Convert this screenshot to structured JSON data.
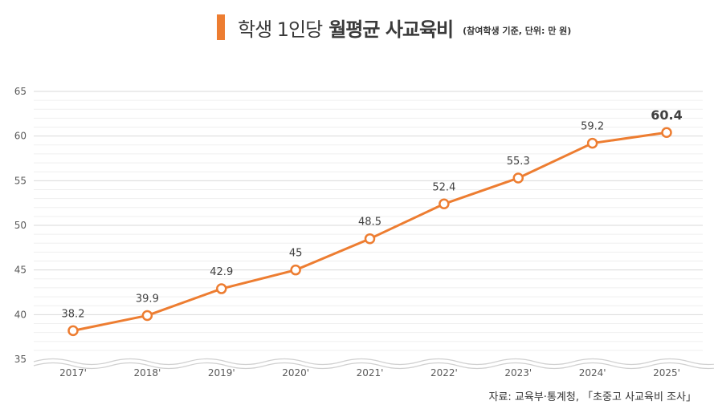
{
  "header": {
    "title_prefix": "학생 1인당",
    "title_bold": "월평균 사교육비",
    "note": "(참여학생 기준, 단위: 만 원)"
  },
  "source": "자료: 교육부·통계청, 「초중고 사교육비 조사」",
  "colors": {
    "accent": "#ed7d31",
    "grid": "#d9d9d9",
    "axis_text": "#595959"
  },
  "chart_data": {
    "type": "line",
    "title": "학생 1인당 월평균 사교육비",
    "subtitle": "(참여학생 기준, 단위: 만 원)",
    "categories": [
      "2017'",
      "2018'",
      "2019'",
      "2020'",
      "2021'",
      "2022'",
      "2023'",
      "2024'",
      "2025'"
    ],
    "series": [
      {
        "values": [
          38.2,
          39.9,
          42.9,
          45,
          48.5,
          52.4,
          55.3,
          59.2,
          60.4
        ]
      }
    ],
    "data_labels": [
      "38.2",
      "39.9",
      "42.9",
      "45",
      "48.5",
      "52.4",
      "55.3",
      "59.2",
      "60.4"
    ],
    "yticks": [
      "35",
      "40",
      "45",
      "50",
      "55",
      "60",
      "65"
    ],
    "ylim": [
      35,
      65
    ],
    "grid": true,
    "legend": false,
    "axis_break": true
  }
}
